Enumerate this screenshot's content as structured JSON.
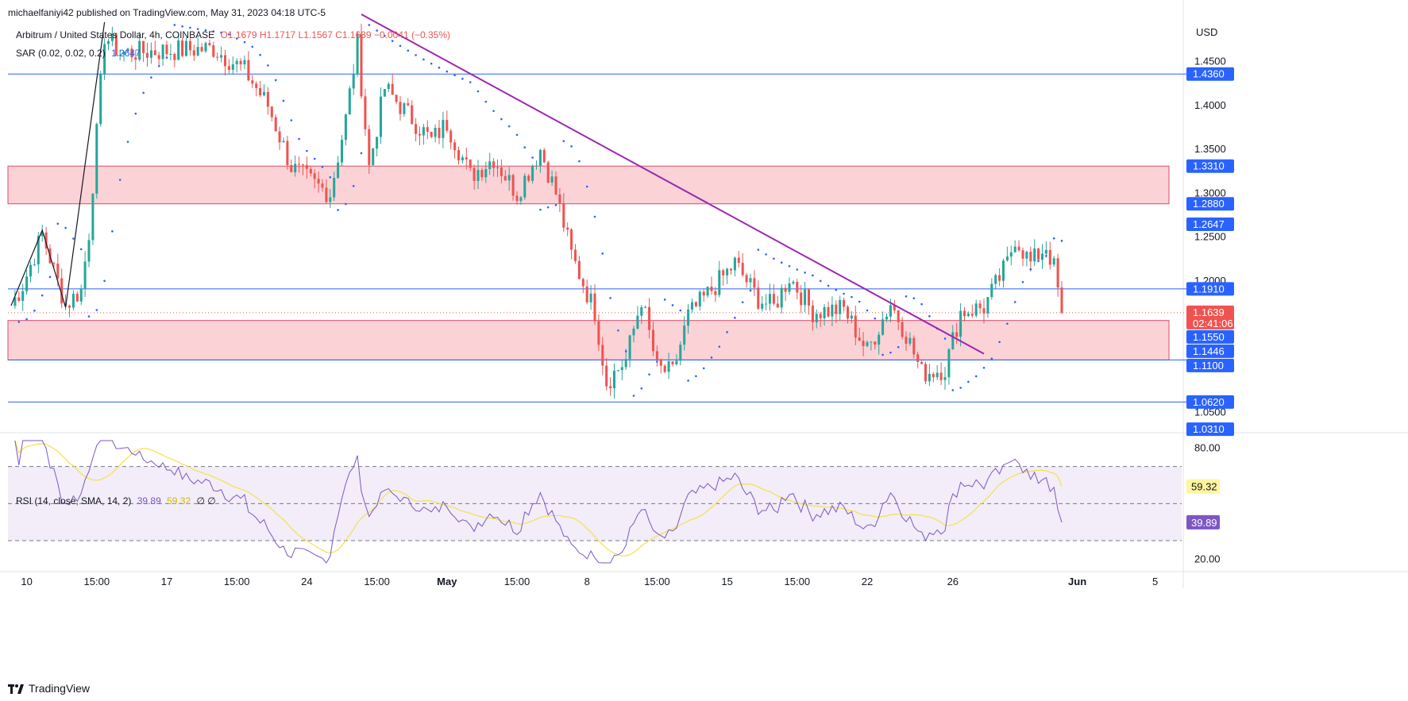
{
  "header": {
    "publisher": "michaelfaniyi42 published on TradingView.com, May 31, 2023 04:18 UTC-5",
    "symbol": "Arbitrum / United States Dollar, 4h, COINBASE",
    "ohlc": "O1.1679 H1.1717 L1.1567 C1.1639 −0.0041 (−0.35%)",
    "sar": "SAR (0.02, 0.02, 0.2)",
    "sar_value": "1.2647"
  },
  "rsi_header": {
    "label": "RSI (14, close, SMA, 14, 2)",
    "rsi": "39.89",
    "sma": "59.32",
    "extra": "∅ ∅"
  },
  "footer": {
    "brand": "TradingView"
  },
  "colors": {
    "up": "#26a69a",
    "down": "#ef5350",
    "sar": "#2962ff",
    "trend": "#9c27b0",
    "zone_fill": "#fbd3d7",
    "level": "#2962ff",
    "rsi": "#7e57c2",
    "rsi_ma": "#f5e14a"
  },
  "chart_data": {
    "type": "candlestick",
    "price_axis": {
      "unit": "USD",
      "ticks": [
        "1.4500",
        "1.4000",
        "1.3500",
        "1.3000",
        "1.2500",
        "1.2000",
        "1.1500",
        "1.1000",
        "1.0500"
      ],
      "tick_values": [
        1.45,
        1.4,
        1.35,
        1.3,
        1.25,
        1.2,
        1.15,
        1.1,
        1.05
      ],
      "range": [
        1.028,
        1.495
      ]
    },
    "time_axis": {
      "labels": [
        "10",
        "15:00",
        "17",
        "15:00",
        "24",
        "15:00",
        "May",
        "15:00",
        "8",
        "15:00",
        "15",
        "15:00",
        "22",
        "26",
        "Jun",
        "5"
      ],
      "bold": [
        "May",
        "Jun"
      ],
      "index": [
        4,
        22,
        40,
        58,
        76,
        94,
        112,
        130,
        148,
        166,
        184,
        202,
        220,
        242,
        274,
        294
      ]
    },
    "horizontal_levels": [
      1.436,
      1.191,
      1.11,
      1.062
    ],
    "price_tags": [
      {
        "value": 1.436,
        "text": "1.4360",
        "kind": "level"
      },
      {
        "value": 1.331,
        "text": "1.3310",
        "kind": "level"
      },
      {
        "value": 1.288,
        "text": "1.2880",
        "kind": "level"
      },
      {
        "value": 1.2647,
        "text": "1.2647",
        "kind": "level"
      },
      {
        "value": 1.191,
        "text": "1.1910",
        "kind": "level"
      },
      {
        "value": 1.1639,
        "text": "1.1639",
        "kind": "current",
        "sub": "02:41:06"
      },
      {
        "value": 1.155,
        "text": "1.1550",
        "kind": "level"
      },
      {
        "value": 1.1446,
        "text": "1.1446",
        "kind": "level"
      },
      {
        "value": 1.11,
        "text": "1.1100",
        "kind": "level"
      },
      {
        "value": 1.062,
        "text": "1.0620",
        "kind": "level"
      },
      {
        "value": 1.031,
        "text": "1.0310",
        "kind": "level"
      }
    ],
    "zones": [
      {
        "from": 1.288,
        "to": 1.331
      },
      {
        "from": 1.11,
        "to": 1.155
      }
    ],
    "current_price": 1.1639,
    "trendline": {
      "from": [
        90,
        1.504
      ],
      "to": [
        250,
        1.117
      ]
    },
    "anchors": [
      {
        "i": 0,
        "p": 1.172
      },
      {
        "i": 3,
        "p": 1.195
      },
      {
        "i": 8,
        "p": 1.253
      },
      {
        "i": 14,
        "p": 1.172
      },
      {
        "i": 18,
        "p": 1.19
      },
      {
        "i": 20,
        "p": 1.255
      },
      {
        "i": 24,
        "p": 1.48
      },
      {
        "i": 28,
        "p": 1.46
      },
      {
        "i": 52,
        "p": 1.465
      },
      {
        "i": 60,
        "p": 1.44
      },
      {
        "i": 66,
        "p": 1.4
      },
      {
        "i": 72,
        "p": 1.33
      },
      {
        "i": 78,
        "p": 1.31
      },
      {
        "i": 82,
        "p": 1.3
      },
      {
        "i": 86,
        "p": 1.385
      },
      {
        "i": 89,
        "p": 1.47
      },
      {
        "i": 92,
        "p": 1.33
      },
      {
        "i": 96,
        "p": 1.42
      },
      {
        "i": 102,
        "p": 1.39
      },
      {
        "i": 108,
        "p": 1.36
      },
      {
        "i": 112,
        "p": 1.38
      },
      {
        "i": 118,
        "p": 1.32
      },
      {
        "i": 124,
        "p": 1.34
      },
      {
        "i": 130,
        "p": 1.3
      },
      {
        "i": 136,
        "p": 1.35
      },
      {
        "i": 140,
        "p": 1.3
      },
      {
        "i": 144,
        "p": 1.23
      },
      {
        "i": 150,
        "p": 1.165
      },
      {
        "i": 153,
        "p": 1.085
      },
      {
        "i": 158,
        "p": 1.11
      },
      {
        "i": 162,
        "p": 1.18
      },
      {
        "i": 166,
        "p": 1.1
      },
      {
        "i": 170,
        "p": 1.095
      },
      {
        "i": 174,
        "p": 1.16
      },
      {
        "i": 180,
        "p": 1.19
      },
      {
        "i": 186,
        "p": 1.22
      },
      {
        "i": 192,
        "p": 1.18
      },
      {
        "i": 196,
        "p": 1.17
      },
      {
        "i": 200,
        "p": 1.205
      },
      {
        "i": 206,
        "p": 1.165
      },
      {
        "i": 214,
        "p": 1.168
      },
      {
        "i": 220,
        "p": 1.12
      },
      {
        "i": 226,
        "p": 1.175
      },
      {
        "i": 230,
        "p": 1.14
      },
      {
        "i": 234,
        "p": 1.095
      },
      {
        "i": 240,
        "p": 1.1
      },
      {
        "i": 244,
        "p": 1.165
      },
      {
        "i": 250,
        "p": 1.17
      },
      {
        "i": 256,
        "p": 1.22
      },
      {
        "i": 258,
        "p": 1.25
      },
      {
        "i": 262,
        "p": 1.22
      },
      {
        "i": 266,
        "p": 1.24
      },
      {
        "i": 268,
        "p": 1.215
      },
      {
        "i": 270,
        "p": 1.164
      }
    ],
    "rsi_panel": {
      "ticks": [
        "80.00",
        "20.00"
      ],
      "tick_values": [
        80,
        20
      ],
      "range": [
        15,
        87
      ],
      "band": [
        70,
        30
      ],
      "mid": 50,
      "rsi_tag": "39.89",
      "ma_tag": "59.32",
      "rsi_value": 39.89,
      "ma_value": 59.32
    }
  }
}
